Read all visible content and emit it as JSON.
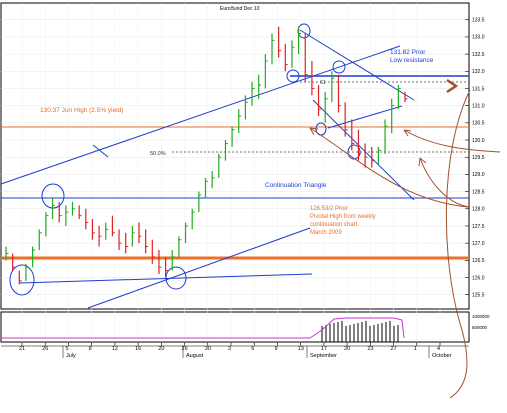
{
  "chart_data": {
    "type": "ohlc",
    "title": "EuroBund Dec 10",
    "y_ticks": [
      "133.5",
      "133.0",
      "132.5",
      "132.0",
      "131.5",
      "131.0",
      "130.5",
      "130.0",
      "129.5",
      "129.0",
      "128.5",
      "128.0",
      "127.5",
      "127.0",
      "126.5",
      "126.0",
      "125.5"
    ],
    "ylim": [
      125.2,
      133.9
    ],
    "x_day_labels": [
      "21",
      "26",
      "5",
      "8",
      "12",
      "16",
      "20",
      "26",
      "30",
      "3",
      "6",
      "9",
      "13",
      "17",
      "20",
      "23",
      "27",
      "1",
      "4"
    ],
    "x_month_labels": [
      "July",
      "August",
      "September",
      "October"
    ],
    "annotations": {
      "prior_low": "131.82 Prior",
      "prior_low_2": "Low resistance",
      "jun_high": "130.37 Jun High (2.5% yield)",
      "fib": "50.0%",
      "fib_61": "61",
      "triangle": "Continuation Triangle",
      "pivot_1": "126.53/2 Prior",
      "pivot_2": "Pivotal High from weekly",
      "pivot_3": "continuation chart",
      "pivot_4": "March 2009"
    },
    "volume_ticks": [
      "1000000",
      "500000"
    ],
    "bars": [
      {
        "h": 126.9,
        "l": 126.5,
        "c": 126.7
      },
      {
        "h": 126.7,
        "l": 126.2,
        "c": 126.3
      },
      {
        "h": 126.2,
        "l": 125.8,
        "c": 125.9
      },
      {
        "h": 126.4,
        "l": 125.9,
        "c": 126.3
      },
      {
        "h": 126.9,
        "l": 126.3,
        "c": 126.8
      },
      {
        "h": 127.4,
        "l": 126.8,
        "c": 127.3
      },
      {
        "h": 127.9,
        "l": 127.2,
        "c": 127.8
      },
      {
        "h": 128.3,
        "l": 127.7,
        "c": 128.1
      },
      {
        "h": 128.2,
        "l": 127.6,
        "c": 127.8
      },
      {
        "h": 128.1,
        "l": 127.5,
        "c": 127.9
      },
      {
        "h": 128.2,
        "l": 127.8,
        "c": 128.0
      },
      {
        "h": 128.1,
        "l": 127.7,
        "c": 127.8
      },
      {
        "h": 128.0,
        "l": 127.4,
        "c": 127.6
      },
      {
        "h": 127.7,
        "l": 127.1,
        "c": 127.3
      },
      {
        "h": 127.5,
        "l": 126.9,
        "c": 127.2
      },
      {
        "h": 127.6,
        "l": 127.1,
        "c": 127.4
      },
      {
        "h": 127.8,
        "l": 127.2,
        "c": 127.3
      },
      {
        "h": 127.4,
        "l": 126.8,
        "c": 127.0
      },
      {
        "h": 127.3,
        "l": 126.7,
        "c": 126.9
      },
      {
        "h": 127.5,
        "l": 126.9,
        "c": 127.3
      },
      {
        "h": 127.6,
        "l": 127.0,
        "c": 127.2
      },
      {
        "h": 127.4,
        "l": 126.7,
        "c": 126.9
      },
      {
        "h": 127.1,
        "l": 126.4,
        "c": 126.6
      },
      {
        "h": 126.8,
        "l": 126.1,
        "c": 126.3
      },
      {
        "h": 126.6,
        "l": 126.0,
        "c": 126.2
      },
      {
        "h": 126.8,
        "l": 126.2,
        "c": 126.6
      },
      {
        "h": 127.2,
        "l": 126.6,
        "c": 127.1
      },
      {
        "h": 127.6,
        "l": 127.0,
        "c": 127.5
      },
      {
        "h": 128.0,
        "l": 127.4,
        "c": 127.9
      },
      {
        "h": 128.5,
        "l": 127.9,
        "c": 128.4
      },
      {
        "h": 128.9,
        "l": 128.3,
        "c": 128.8
      },
      {
        "h": 129.1,
        "l": 128.6,
        "c": 128.9
      },
      {
        "h": 129.6,
        "l": 128.9,
        "c": 129.5
      },
      {
        "h": 130.0,
        "l": 129.4,
        "c": 129.9
      },
      {
        "h": 130.4,
        "l": 129.8,
        "c": 130.3
      },
      {
        "h": 130.9,
        "l": 130.2,
        "c": 130.7
      },
      {
        "h": 131.3,
        "l": 130.6,
        "c": 131.1
      },
      {
        "h": 131.7,
        "l": 131.0,
        "c": 131.5
      },
      {
        "h": 131.9,
        "l": 131.2,
        "c": 131.6
      },
      {
        "h": 132.5,
        "l": 131.5,
        "c": 132.3
      },
      {
        "h": 133.1,
        "l": 132.2,
        "c": 132.9
      },
      {
        "h": 133.3,
        "l": 132.4,
        "c": 132.6
      },
      {
        "h": 132.8,
        "l": 132.0,
        "c": 132.2
      },
      {
        "h": 132.9,
        "l": 132.1,
        "c": 132.7
      },
      {
        "h": 133.3,
        "l": 132.5,
        "c": 133.1
      },
      {
        "h": 133.1,
        "l": 131.7,
        "c": 131.9
      },
      {
        "h": 132.3,
        "l": 131.3,
        "c": 131.5
      },
      {
        "h": 131.6,
        "l": 130.7,
        "c": 130.9
      },
      {
        "h": 131.4,
        "l": 130.5,
        "c": 131.2
      },
      {
        "h": 132.0,
        "l": 131.1,
        "c": 131.8
      },
      {
        "h": 131.9,
        "l": 130.8,
        "c": 131.0
      },
      {
        "h": 131.1,
        "l": 130.1,
        "c": 130.3
      },
      {
        "h": 130.6,
        "l": 129.7,
        "c": 129.9
      },
      {
        "h": 130.3,
        "l": 129.4,
        "c": 129.6
      },
      {
        "h": 129.9,
        "l": 129.2,
        "c": 129.5
      },
      {
        "h": 129.8,
        "l": 129.2,
        "c": 129.4
      },
      {
        "h": 129.8,
        "l": 129.3,
        "c": 129.7
      },
      {
        "h": 130.6,
        "l": 129.6,
        "c": 130.4
      },
      {
        "h": 131.2,
        "l": 130.2,
        "c": 131.0
      },
      {
        "h": 131.6,
        "l": 130.9,
        "c": 131.5
      },
      {
        "h": 131.4,
        "l": 131.1,
        "c": 131.2
      }
    ]
  }
}
